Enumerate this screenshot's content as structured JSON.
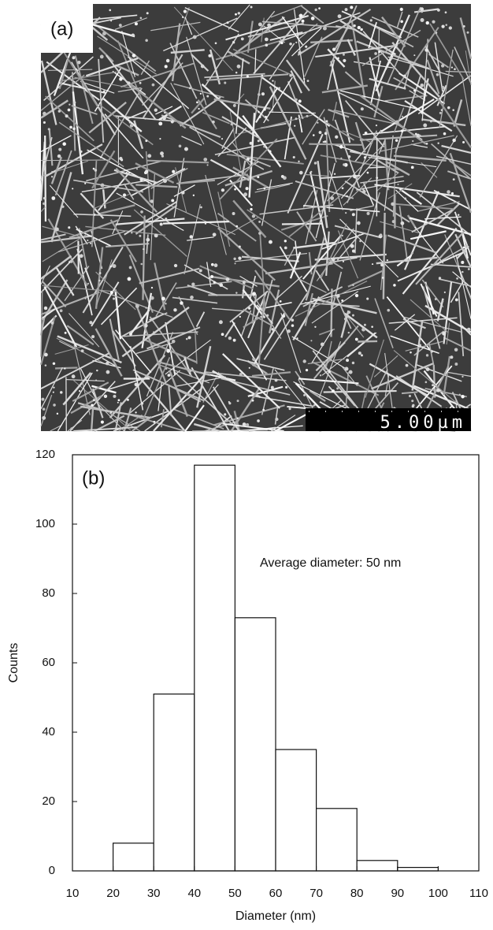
{
  "panel_a": {
    "label": "(a)",
    "scale_bar": "5.00µm"
  },
  "chart_data": {
    "type": "histogram",
    "panel_label": "(b)",
    "annotation": "Average diameter: 50 nm",
    "xlabel": "Diameter (nm)",
    "ylabel": "Counts",
    "bins": [
      20,
      30,
      40,
      50,
      60,
      70,
      80,
      90,
      100
    ],
    "counts": [
      8,
      51,
      117,
      73,
      35,
      18,
      3,
      1
    ],
    "color": "#ffffff",
    "xlim": [
      10,
      110
    ],
    "xticks": [
      10,
      20,
      30,
      40,
      50,
      60,
      70,
      80,
      90,
      100,
      110
    ],
    "ylim": [
      0,
      120
    ],
    "yticks": [
      0,
      20,
      40,
      60,
      80,
      100,
      120
    ]
  }
}
